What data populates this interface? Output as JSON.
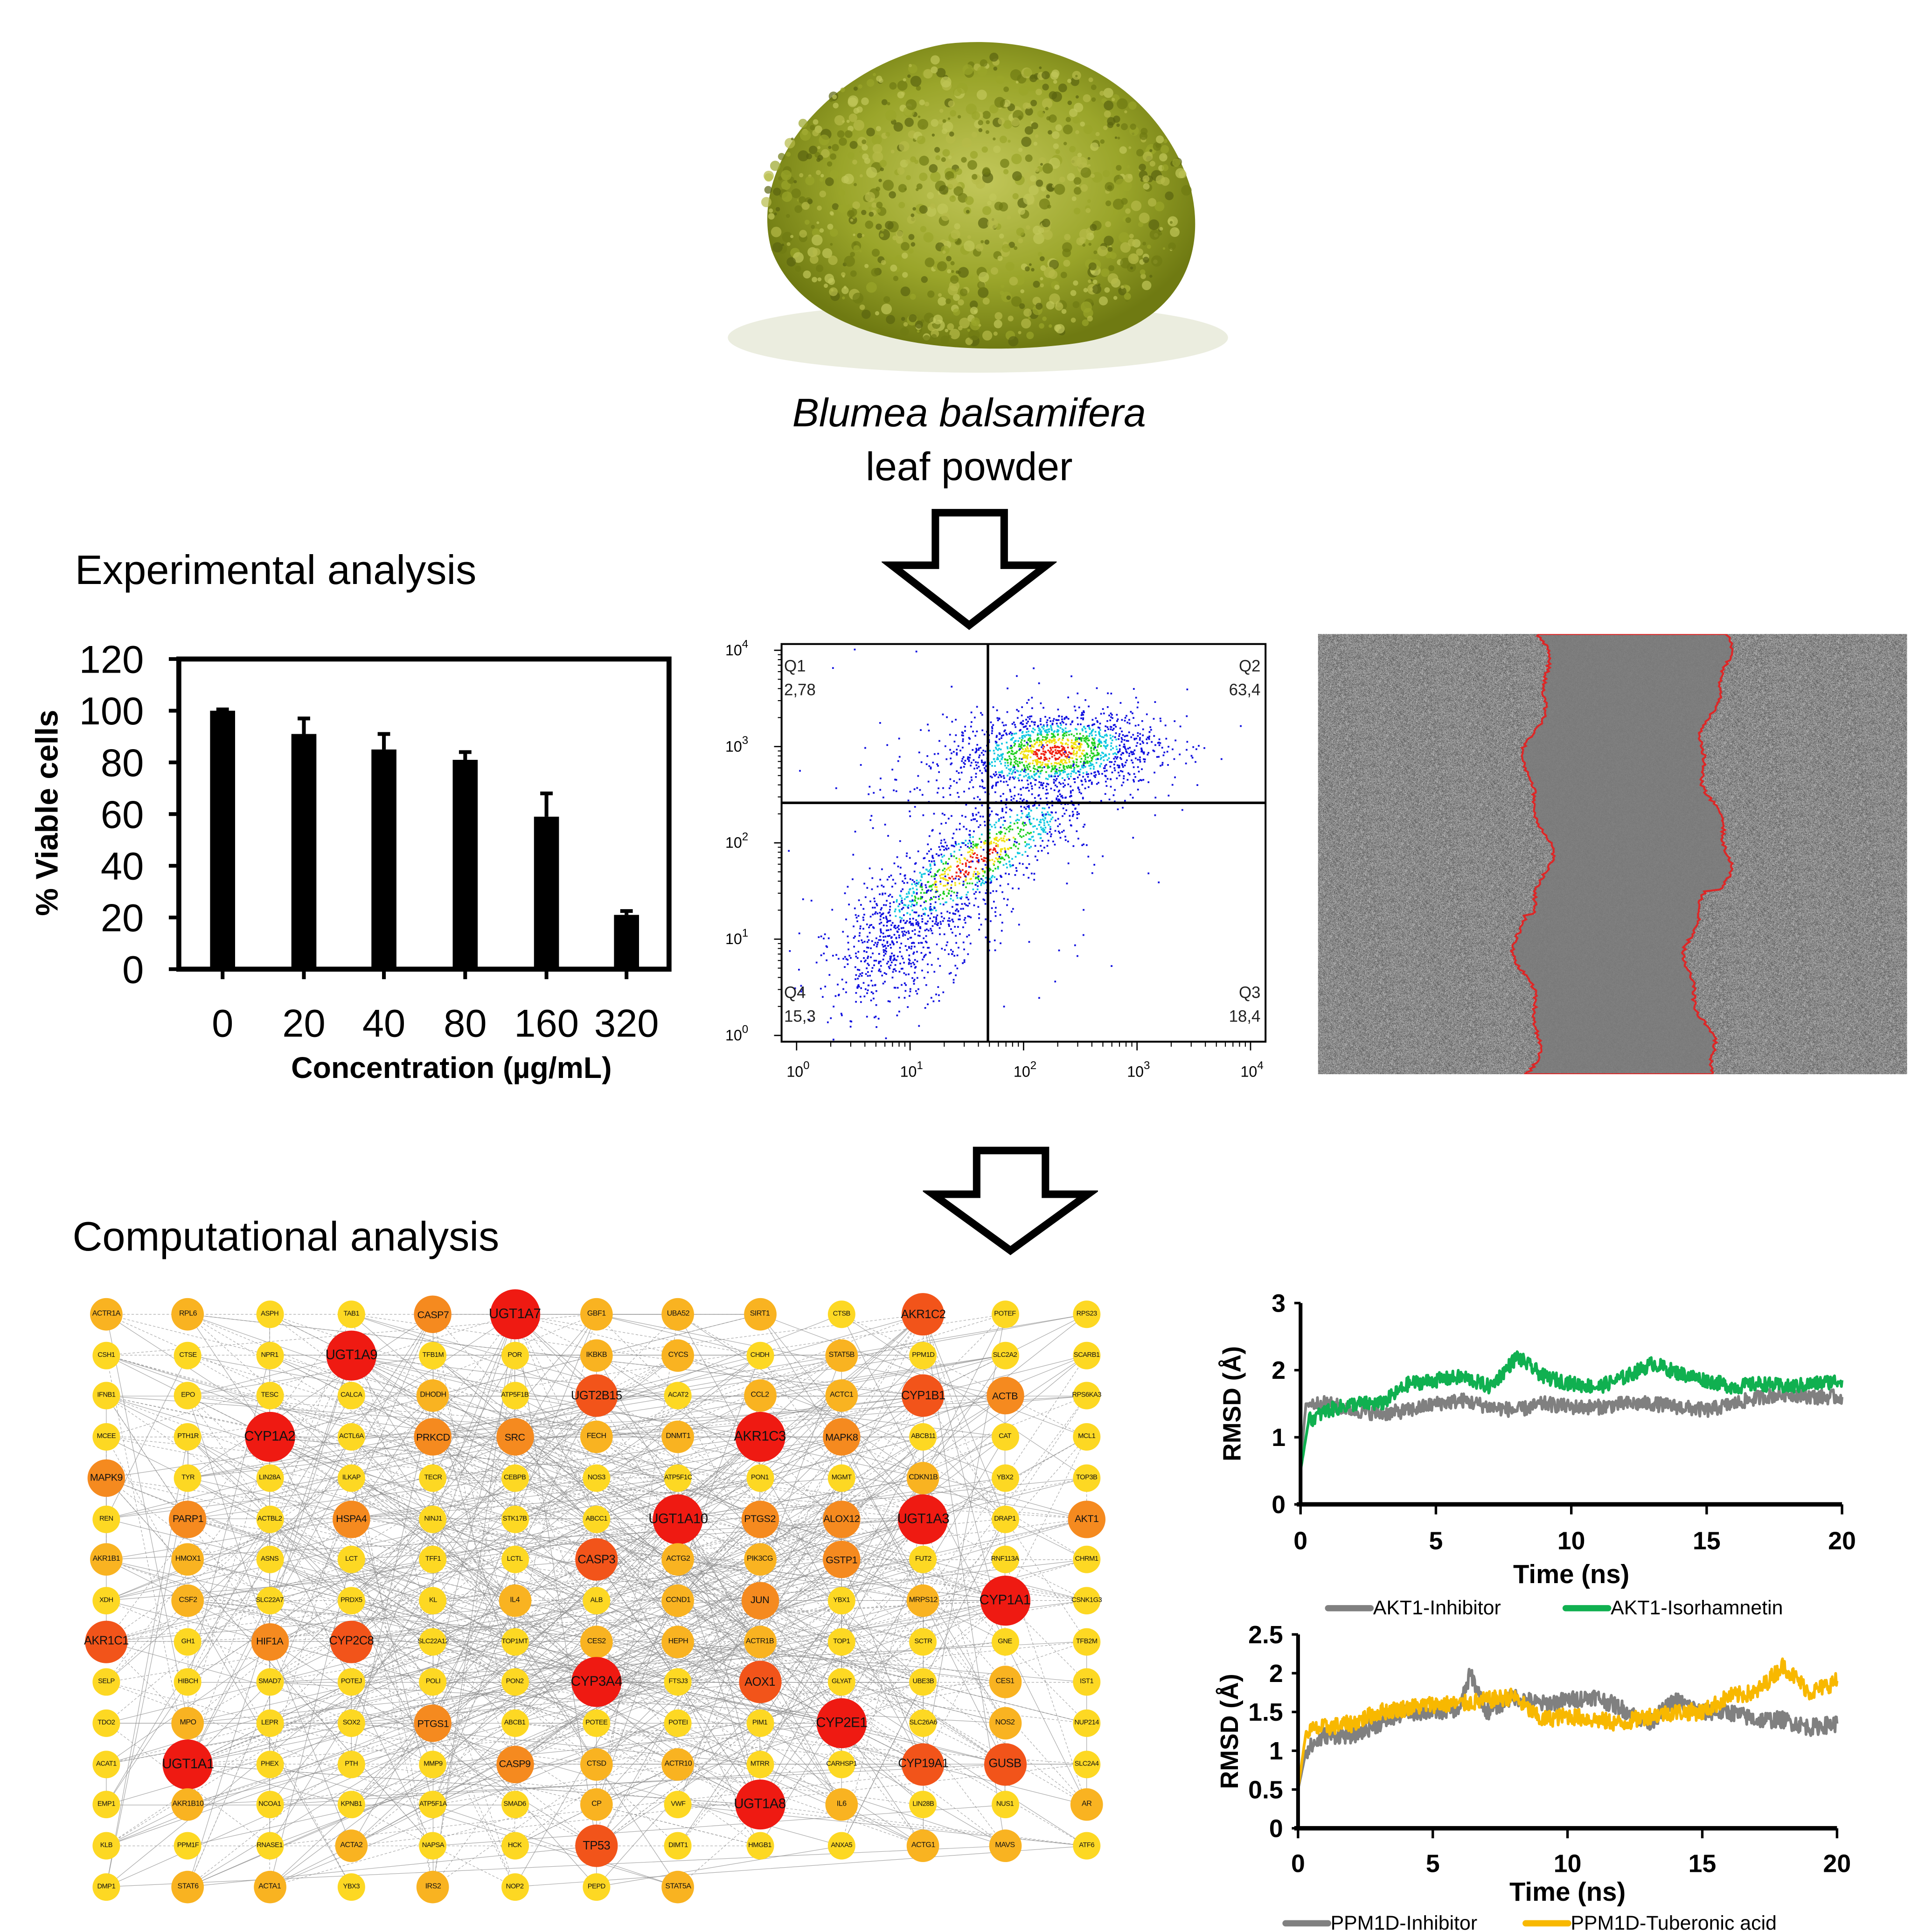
{
  "powder": {
    "species": "Blumea balsamifera",
    "description": "leaf powder",
    "colors": {
      "powder_dark": "#6f7a12",
      "powder_mid": "#9aa52a",
      "powder_light": "#c2c75a"
    }
  },
  "sections": {
    "experimental": "Experimental analysis",
    "computational": "Computational analysis"
  },
  "chart_data": [
    {
      "type": "bar",
      "categories": [
        "0",
        "20",
        "40",
        "80",
        "160",
        "320"
      ],
      "values": [
        100,
        91,
        85,
        81,
        59,
        21
      ],
      "errors": [
        0.5,
        6,
        6,
        3,
        9,
        1.5
      ],
      "xlabel": "Concentration (µg/mL)",
      "ylabel": "% Viable cells",
      "ylim": [
        0,
        120
      ],
      "yticks": [
        "0",
        "20",
        "40",
        "60",
        "80",
        "100",
        "120"
      ],
      "bar_color": "#000000"
    },
    {
      "type": "scatter",
      "scale": "log-log",
      "xlim": [
        1,
        10000
      ],
      "ylim": [
        1,
        10000
      ],
      "xticks": [
        "10^0",
        "10^1",
        "10^2",
        "10^3",
        "10^4"
      ],
      "yticks": [
        "10^0",
        "10^1",
        "10^2",
        "10^3",
        "10^4"
      ],
      "quadrants": [
        {
          "name": "Q1",
          "value": "2,78"
        },
        {
          "name": "Q2",
          "value": "63,4"
        },
        {
          "name": "Q3",
          "value": "18,4"
        },
        {
          "name": "Q4",
          "value": "15,3"
        }
      ],
      "density_colors": [
        "#1010e0",
        "#10c8e0",
        "#20d020",
        "#f0e010",
        "#f02010"
      ]
    },
    {
      "type": "line",
      "xlabel": "Time (ns)",
      "ylabel": "RMSD (Å)",
      "xlim": [
        0,
        20
      ],
      "ylim": [
        0,
        3
      ],
      "xticks": [
        "0",
        "5",
        "10",
        "15",
        "20"
      ],
      "yticks": [
        "0",
        "1",
        "2",
        "3"
      ],
      "legend": "bottom",
      "series": [
        {
          "name": "AKT1-Inhibitor",
          "color": "#808080",
          "points": [
            [
              0,
              0.6
            ],
            [
              0.2,
              1.5
            ],
            [
              1,
              1.5
            ],
            [
              2,
              1.4
            ],
            [
              3,
              1.35
            ],
            [
              4,
              1.4
            ],
            [
              5,
              1.5
            ],
            [
              6,
              1.55
            ],
            [
              7,
              1.45
            ],
            [
              8,
              1.4
            ],
            [
              9,
              1.5
            ],
            [
              10,
              1.45
            ],
            [
              11,
              1.45
            ],
            [
              12,
              1.5
            ],
            [
              13,
              1.5
            ],
            [
              14,
              1.45
            ],
            [
              15,
              1.4
            ],
            [
              16,
              1.5
            ],
            [
              17,
              1.6
            ],
            [
              18,
              1.65
            ],
            [
              19,
              1.6
            ],
            [
              20,
              1.6
            ]
          ]
        },
        {
          "name": "AKT1-Isorhamnetin",
          "color": "#10b050",
          "points": [
            [
              0,
              0.5
            ],
            [
              0.3,
              1.25
            ],
            [
              1,
              1.4
            ],
            [
              2,
              1.5
            ],
            [
              3,
              1.5
            ],
            [
              4,
              1.8
            ],
            [
              5,
              1.85
            ],
            [
              6,
              1.9
            ],
            [
              7,
              1.75
            ],
            [
              8,
              2.2
            ],
            [
              9,
              1.9
            ],
            [
              10,
              1.8
            ],
            [
              11,
              1.75
            ],
            [
              12,
              1.9
            ],
            [
              13,
              2.1
            ],
            [
              14,
              1.95
            ],
            [
              15,
              1.85
            ],
            [
              16,
              1.75
            ],
            [
              17,
              1.8
            ],
            [
              18,
              1.75
            ],
            [
              19,
              1.8
            ],
            [
              20,
              1.85
            ]
          ]
        }
      ]
    },
    {
      "type": "line",
      "xlabel": "Time (ns)",
      "ylabel": "RMSD (Å)",
      "xlim": [
        0,
        20
      ],
      "ylim": [
        0,
        2.5
      ],
      "xticks": [
        "0",
        "5",
        "10",
        "15",
        "20"
      ],
      "yticks": [
        "0",
        "0.5",
        "1",
        "1.5",
        "2",
        "2.5"
      ],
      "legend": "bottom",
      "series": [
        {
          "name": "PPM1D-Inhibitor",
          "color": "#808080",
          "points": [
            [
              0,
              0.5
            ],
            [
              0.3,
              1.0
            ],
            [
              1,
              1.2
            ],
            [
              2,
              1.2
            ],
            [
              3,
              1.35
            ],
            [
              4,
              1.5
            ],
            [
              5,
              1.5
            ],
            [
              6,
              1.55
            ],
            [
              6.4,
              2.0
            ],
            [
              7,
              1.5
            ],
            [
              8,
              1.7
            ],
            [
              9,
              1.6
            ],
            [
              10,
              1.65
            ],
            [
              11,
              1.7
            ],
            [
              12,
              1.55
            ],
            [
              13,
              1.35
            ],
            [
              14,
              1.65
            ],
            [
              15,
              1.5
            ],
            [
              16,
              1.5
            ],
            [
              17,
              1.4
            ],
            [
              18,
              1.4
            ],
            [
              19,
              1.3
            ],
            [
              20,
              1.35
            ]
          ]
        },
        {
          "name": "PPM1D-Tuberonic acid",
          "color": "#f8b800",
          "points": [
            [
              0,
              0.5
            ],
            [
              0.3,
              1.25
            ],
            [
              1,
              1.3
            ],
            [
              2,
              1.35
            ],
            [
              3,
              1.5
            ],
            [
              4,
              1.55
            ],
            [
              5,
              1.6
            ],
            [
              6,
              1.6
            ],
            [
              7,
              1.65
            ],
            [
              8,
              1.7
            ],
            [
              9,
              1.4
            ],
            [
              10,
              1.45
            ],
            [
              11,
              1.4
            ],
            [
              12,
              1.35
            ],
            [
              13,
              1.45
            ],
            [
              14,
              1.5
            ],
            [
              15,
              1.5
            ],
            [
              16,
              1.7
            ],
            [
              17,
              1.75
            ],
            [
              18,
              2.1
            ],
            [
              19,
              1.75
            ],
            [
              20,
              1.9
            ]
          ]
        }
      ]
    }
  ],
  "network": {
    "rows": [
      [
        "ACTR1A",
        "RPL6",
        "ASPH",
        "TAB1",
        "CASP7",
        "UGT1A7",
        "GBF1",
        "UBA52",
        "SIRT1",
        "CTSB",
        "AKR1C2",
        "POTEF",
        "RPS23"
      ],
      [
        "CSH1",
        "CTSE",
        "NPR1",
        "UGT1A9",
        "TFB1M",
        "POR",
        "IKBKB",
        "CYCS",
        "CHDH",
        "STAT5B",
        "PPM1D",
        "SLC2A2",
        "SCARB1"
      ],
      [
        "IFNB1",
        "EPO",
        "TESC",
        "CALCA",
        "DHODH",
        "ATP5F1B",
        "UGT2B15",
        "ACAT2",
        "CCL2",
        "ACTC1",
        "CYP1B1",
        "ACTB",
        "RPS6KA3"
      ],
      [
        "MCEE",
        "PTH1R",
        "CYP1A2",
        "ACTL6A",
        "PRKCD",
        "SRC",
        "FECH",
        "DNMT1",
        "AKR1C3",
        "MAPK8",
        "ABCB11",
        "CAT",
        "MCL1"
      ],
      [
        "MAPK9",
        "TYR",
        "LIN28A",
        "ILKAP",
        "TECR",
        "CEBPB",
        "NOS3",
        "ATP5F1C",
        "PON1",
        "MGMT",
        "CDKN1B",
        "YBX2",
        "TOP3B"
      ],
      [
        "REN",
        "PARP1",
        "ACTBL2",
        "HSPA4",
        "NINJ1",
        "STK17B",
        "ABCC1",
        "UGT1A10",
        "PTGS2",
        "ALOX12",
        "UGT1A3",
        "DRAP1",
        "AKT1"
      ],
      [
        "AKR1B1",
        "HMOX1",
        "ASNS",
        "LCT",
        "TFF1",
        "LCTL",
        "CASP3",
        "ACTG2",
        "PIK3CG",
        "GSTP1",
        "FUT2",
        "RNF113A",
        "CHRM1"
      ],
      [
        "XDH",
        "CSF2",
        "SLC22A7",
        "PRDX5",
        "KL",
        "IL4",
        "ALB",
        "CCND1",
        "JUN",
        "YBX1",
        "MRPS12",
        "CYP1A1",
        "CSNK1G3"
      ],
      [
        "AKR1C1",
        "GH1",
        "HIF1A",
        "CYP2C8",
        "SLC22A12",
        "TOP1MT",
        "CES2",
        "HEPH",
        "ACTR1B",
        "TOP1",
        "SCTR",
        "GNE",
        "TFB2M"
      ],
      [
        "SELP",
        "HIBCH",
        "SMAD7",
        "POTEJ",
        "POLI",
        "PON2",
        "CYP3A4",
        "FTSJ3",
        "AOX1",
        "GLYAT",
        "UBE3B",
        "CES1",
        "IST1"
      ],
      [
        "TDO2",
        "MPO",
        "LEPR",
        "SOX2",
        "PTGS1",
        "ABCB1",
        "POTEE",
        "POTEI",
        "PIM1",
        "CYP2E1",
        "SLC26A6",
        "NOS2",
        "NUP214"
      ],
      [
        "ACAT1",
        "UGT1A1",
        "PHEX",
        "PTH",
        "MMP9",
        "CASP9",
        "CTSD",
        "ACTR10",
        "MTRR",
        "CARHSP1",
        "CYP19A1",
        "GUSB",
        "SLC2A4"
      ],
      [
        "EMP1",
        "AKR1B10",
        "NCOA1",
        "KPNB1",
        "ATP5F1A",
        "SMAD6",
        "CP",
        "VWF",
        "UGT1A8",
        "IL6",
        "LIN28B",
        "NUS1",
        "AR"
      ],
      [
        "KLB",
        "PPM1F",
        "RNASE1",
        "ACTA2",
        "NAPSA",
        "HCK",
        "TP53",
        "DIMT1",
        "HMGB1",
        "ANXA5",
        "ACTG1",
        "MAVS",
        "ATF6"
      ],
      [
        "DMP1",
        "STAT6",
        "ACTA1",
        "YBX3",
        "IRS2",
        "NOP2",
        "PEPD",
        "STAT5A"
      ]
    ],
    "tiers": {
      "5": [
        "UGT1A7",
        "UGT1A9",
        "CYP1A2",
        "UGT1A10",
        "UGT1A3",
        "CYP1A1",
        "UGT1A1",
        "CYP3A4",
        "UGT1A8",
        "AKR1C3",
        "CYP2E1"
      ],
      "4": [
        "AKR1C2",
        "UGT2B15",
        "CYP1B1",
        "AKR1C1",
        "CYP2C8",
        "CASP3",
        "AOX1",
        "CYP19A1",
        "GUSB",
        "TP53"
      ],
      "3": [
        "CASP7",
        "SRC",
        "MAPK9",
        "MAPK8",
        "PTGS2",
        "ALOX12",
        "GSTP1",
        "AKT1",
        "JUN",
        "HIF1A",
        "PTGS1",
        "CASP9",
        "ACTB",
        "PARP1",
        "HSPA4",
        "PRKCD"
      ],
      "2": [
        "CSF2",
        "IL4",
        "CCND1",
        "CYCS",
        "UBA52",
        "SIRT1",
        "CCL2",
        "ACTC1",
        "IKBKB",
        "CP",
        "IL6",
        "ACTG1",
        "ACTA1",
        "IRS2",
        "CES1",
        "ACTA2",
        "HEPH",
        "ACTR10",
        "CDKN1B",
        "AR",
        "STAT6",
        "STAT5A",
        "AKR1B10",
        "FECH",
        "DNMT1",
        "AKR1B1",
        "HMOX1",
        "MPO",
        "CES2",
        "ACTR1A",
        "RPL6",
        "GBF1",
        "ACTG2",
        "DHODH",
        "ACTR1B",
        "STAT5B",
        "PIK3CG",
        "CTSD",
        "NOS2",
        "MRPS12",
        "MAVS",
        "ACTR1A"
      ]
    },
    "tier_colors": {
      "1": "#fdd823",
      "2": "#f9b321",
      "3": "#f58a1f",
      "4": "#f2541a",
      "5": "#ef1a12"
    },
    "edge_color": "#8c8c8c"
  },
  "scratch": {
    "gap_outline_color": "#e02424",
    "background": "#8a8a8a"
  }
}
